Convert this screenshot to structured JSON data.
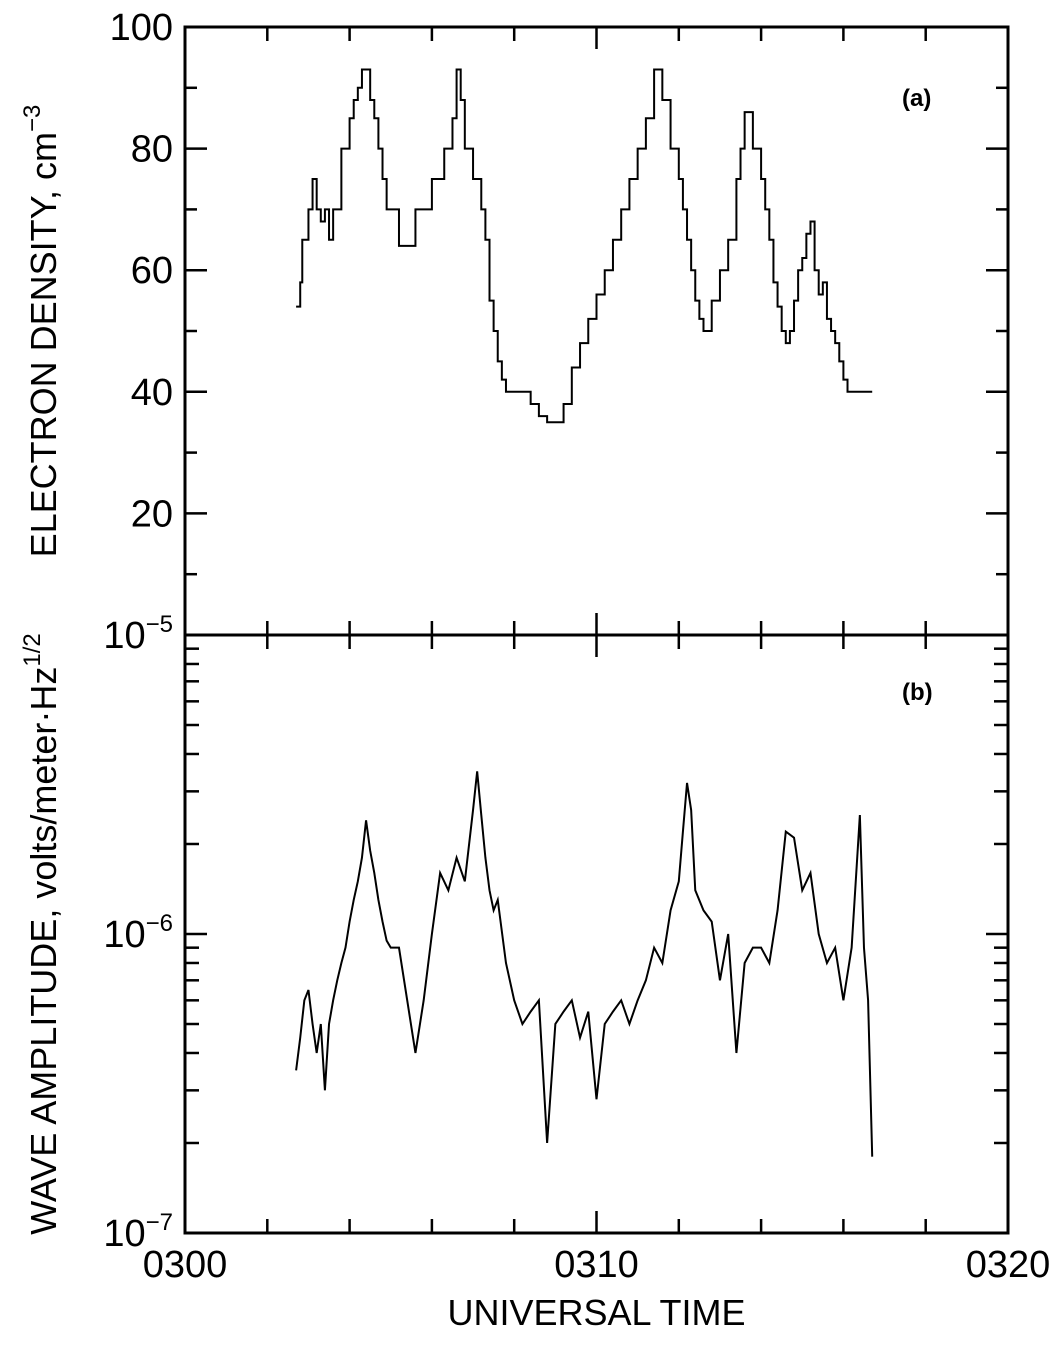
{
  "chart_data": [
    {
      "type": "line",
      "panel_label": "(a)",
      "ylabel": "ELECTRON DENSITY, cm",
      "ylabel_exponent": "−3",
      "xlim": [
        0,
        20
      ],
      "ylim": [
        0,
        100
      ],
      "yticks": [
        20,
        40,
        60,
        80,
        100
      ],
      "ytick_labels": [
        "20",
        "40",
        "60",
        "80",
        "100"
      ],
      "bottom_label_base": "10",
      "bottom_label_exponent": "−5",
      "series": [
        {
          "x": [
            2.7,
            2.8,
            2.85,
            3.0,
            3.1,
            3.2,
            3.3,
            3.4,
            3.5,
            3.6,
            3.7,
            3.8,
            3.9,
            4.0,
            4.1,
            4.2,
            4.3,
            4.4,
            4.5,
            4.6,
            4.7,
            4.8,
            4.9,
            5.0,
            5.2,
            5.4,
            5.6,
            5.8,
            6.0,
            6.2,
            6.3,
            6.4,
            6.5,
            6.6,
            6.7,
            6.8,
            6.9,
            7.0,
            7.1,
            7.2,
            7.3,
            7.4,
            7.5,
            7.6,
            7.7,
            7.8,
            7.9,
            8.0,
            8.2,
            8.4,
            8.6,
            8.8,
            9.0,
            9.2,
            9.4,
            9.6,
            9.8,
            10.0,
            10.2,
            10.4,
            10.6,
            10.8,
            11.0,
            11.2,
            11.4,
            11.6,
            11.8,
            12.0,
            12.1,
            12.2,
            12.3,
            12.4,
            12.5,
            12.6,
            12.7,
            12.8,
            13.0,
            13.2,
            13.4,
            13.5,
            13.6,
            13.8,
            14.0,
            14.1,
            14.2,
            14.3,
            14.4,
            14.5,
            14.6,
            14.7,
            14.8,
            14.9,
            15.0,
            15.1,
            15.2,
            15.3,
            15.4,
            15.5,
            15.6,
            15.7,
            15.8,
            15.9,
            16.0,
            16.1,
            16.2,
            16.3,
            16.4,
            16.5,
            16.6,
            16.7
          ],
          "y": [
            54,
            58,
            65,
            70,
            75,
            70,
            68,
            70,
            65,
            70,
            70,
            80,
            80,
            85,
            88,
            90,
            93,
            93,
            88,
            85,
            80,
            75,
            70,
            70,
            64,
            64,
            70,
            70,
            75,
            75,
            80,
            80,
            85,
            93,
            88,
            80,
            80,
            75,
            75,
            70,
            65,
            55,
            50,
            45,
            42,
            40,
            40,
            40,
            40,
            38,
            36,
            35,
            35,
            38,
            44,
            48,
            52,
            56,
            60,
            65,
            70,
            75,
            80,
            85,
            93,
            88,
            80,
            75,
            70,
            65,
            60,
            55,
            52,
            50,
            50,
            55,
            60,
            65,
            75,
            80,
            86,
            80,
            75,
            70,
            65,
            58,
            54,
            50,
            48,
            50,
            55,
            60,
            62,
            66,
            68,
            60,
            56,
            58,
            52,
            50,
            48,
            45,
            42,
            40,
            40,
            40,
            40,
            40,
            40,
            40
          ]
        }
      ]
    },
    {
      "type": "line",
      "panel_label": "(b)",
      "ylabel": "WAVE AMPLITUDE, volts/meter·Hz",
      "ylabel_exponent": "1/2",
      "xlabel": "UNIVERSAL TIME",
      "xlim": [
        0,
        20
      ],
      "xticks": [
        0,
        10,
        20
      ],
      "xtick_labels": [
        "0300",
        "0310",
        "0320"
      ],
      "yscale": "log",
      "ylim": [
        1e-07,
        1e-05
      ],
      "ytick_labels_base": [
        "10",
        "10"
      ],
      "ytick_labels_exponent": [
        "−6",
        "−7"
      ],
      "series": [
        {
          "x": [
            2.7,
            2.8,
            2.9,
            3.0,
            3.1,
            3.2,
            3.3,
            3.4,
            3.5,
            3.6,
            3.7,
            3.8,
            3.9,
            4.0,
            4.1,
            4.2,
            4.3,
            4.4,
            4.5,
            4.6,
            4.7,
            4.8,
            4.9,
            5.0,
            5.2,
            5.4,
            5.6,
            5.8,
            6.0,
            6.2,
            6.4,
            6.6,
            6.8,
            7.0,
            7.1,
            7.2,
            7.3,
            7.4,
            7.5,
            7.6,
            7.8,
            8.0,
            8.2,
            8.4,
            8.6,
            8.8,
            9.0,
            9.2,
            9.4,
            9.6,
            9.8,
            10.0,
            10.2,
            10.4,
            10.6,
            10.8,
            11.0,
            11.2,
            11.4,
            11.6,
            11.8,
            12.0,
            12.1,
            12.2,
            12.3,
            12.4,
            12.6,
            12.8,
            13.0,
            13.2,
            13.4,
            13.6,
            13.8,
            14.0,
            14.2,
            14.4,
            14.6,
            14.8,
            15.0,
            15.2,
            15.4,
            15.6,
            15.8,
            16.0,
            16.2,
            16.4,
            16.5,
            16.6,
            16.7
          ],
          "y": [
            3.5e-07,
            4.5e-07,
            6e-07,
            6.5e-07,
            5e-07,
            4e-07,
            5e-07,
            3e-07,
            5e-07,
            6e-07,
            7e-07,
            8e-07,
            9e-07,
            1.1e-06,
            1.3e-06,
            1.5e-06,
            1.8e-06,
            2.4e-06,
            1.9e-06,
            1.6e-06,
            1.3e-06,
            1.1e-06,
            9.5e-07,
            9e-07,
            9e-07,
            6e-07,
            4e-07,
            6e-07,
            1e-06,
            1.6e-06,
            1.4e-06,
            1.8e-06,
            1.5e-06,
            2.6e-06,
            3.5e-06,
            2.5e-06,
            1.8e-06,
            1.4e-06,
            1.2e-06,
            1.3e-06,
            8e-07,
            6e-07,
            5e-07,
            5.5e-07,
            6e-07,
            2e-07,
            5e-07,
            5.5e-07,
            6e-07,
            4.5e-07,
            5.5e-07,
            2.8e-07,
            5e-07,
            5.5e-07,
            6e-07,
            5e-07,
            6e-07,
            7e-07,
            9e-07,
            8e-07,
            1.2e-06,
            1.5e-06,
            2.2e-06,
            3.2e-06,
            2.6e-06,
            1.4e-06,
            1.2e-06,
            1.1e-06,
            7e-07,
            1e-06,
            4e-07,
            8e-07,
            9e-07,
            9e-07,
            8e-07,
            1.2e-06,
            2.2e-06,
            2.1e-06,
            1.4e-06,
            1.6e-06,
            1e-06,
            8e-07,
            9e-07,
            6e-07,
            9e-07,
            2.5e-06,
            9e-07,
            6e-07,
            1.8e-07
          ]
        }
      ]
    }
  ]
}
